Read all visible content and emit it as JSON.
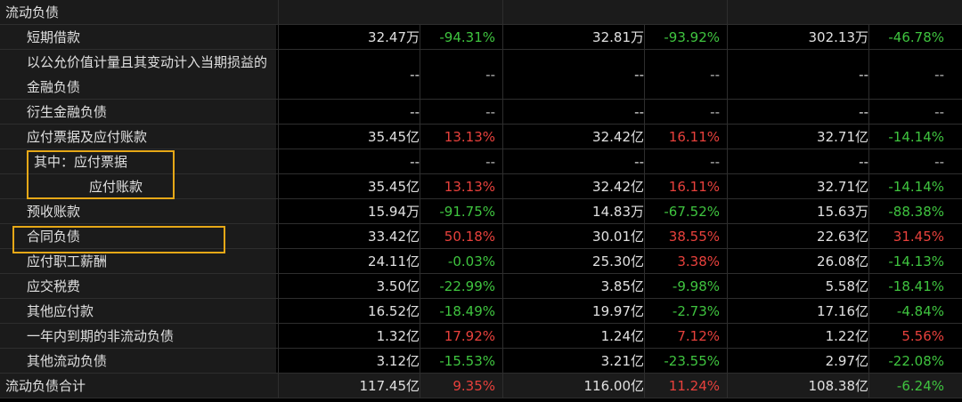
{
  "header": {
    "title": "流动负债"
  },
  "rows": [
    {
      "label": "短期借款",
      "cells": [
        {
          "value": "32.47万",
          "change": "-94.31%"
        },
        {
          "value": "32.81万",
          "change": "-93.92%"
        },
        {
          "value": "302.13万",
          "change": "-46.78%"
        }
      ]
    },
    {
      "label": "以公允价值计量且其变动计入当期损益的金融负债",
      "cells": [
        {
          "value": "--",
          "change": "--"
        },
        {
          "value": "--",
          "change": "--"
        },
        {
          "value": "--",
          "change": "--"
        }
      ]
    },
    {
      "label": "衍生金融负债",
      "cells": [
        {
          "value": "--",
          "change": "--"
        },
        {
          "value": "--",
          "change": "--"
        },
        {
          "value": "--",
          "change": "--"
        }
      ]
    },
    {
      "label": "应付票据及应付账款",
      "cells": [
        {
          "value": "35.45亿",
          "change": "13.13%"
        },
        {
          "value": "32.42亿",
          "change": "16.11%"
        },
        {
          "value": "32.71亿",
          "change": "-14.14%"
        }
      ]
    },
    {
      "label": "其中：应付票据",
      "cells": [
        {
          "value": "--",
          "change": "--"
        },
        {
          "value": "--",
          "change": "--"
        },
        {
          "value": "--",
          "change": "--"
        }
      ]
    },
    {
      "label": "应付账款",
      "cells": [
        {
          "value": "35.45亿",
          "change": "13.13%"
        },
        {
          "value": "32.42亿",
          "change": "16.11%"
        },
        {
          "value": "32.71亿",
          "change": "-14.14%"
        }
      ]
    },
    {
      "label": "预收账款",
      "cells": [
        {
          "value": "15.94万",
          "change": "-91.75%"
        },
        {
          "value": "14.83万",
          "change": "-67.52%"
        },
        {
          "value": "15.63万",
          "change": "-88.38%"
        }
      ]
    },
    {
      "label": "合同负债",
      "cells": [
        {
          "value": "33.42亿",
          "change": "50.18%"
        },
        {
          "value": "30.01亿",
          "change": "38.55%"
        },
        {
          "value": "22.63亿",
          "change": "31.45%"
        }
      ]
    },
    {
      "label": "应付职工薪酬",
      "cells": [
        {
          "value": "24.11亿",
          "change": "-0.03%"
        },
        {
          "value": "25.30亿",
          "change": "3.38%"
        },
        {
          "value": "26.08亿",
          "change": "-14.13%"
        }
      ]
    },
    {
      "label": "应交税费",
      "cells": [
        {
          "value": "3.50亿",
          "change": "-22.99%"
        },
        {
          "value": "3.85亿",
          "change": "-9.98%"
        },
        {
          "value": "5.58亿",
          "change": "-18.41%"
        }
      ]
    },
    {
      "label": "其他应付款",
      "cells": [
        {
          "value": "16.52亿",
          "change": "-18.49%"
        },
        {
          "value": "19.97亿",
          "change": "-2.73%"
        },
        {
          "value": "17.16亿",
          "change": "-4.84%"
        }
      ]
    },
    {
      "label": "一年内到期的非流动负债",
      "cells": [
        {
          "value": "1.32亿",
          "change": "17.92%"
        },
        {
          "value": "1.24亿",
          "change": "7.12%"
        },
        {
          "value": "1.22亿",
          "change": "5.56%"
        }
      ]
    },
    {
      "label": "其他流动负债",
      "cells": [
        {
          "value": "3.12亿",
          "change": "-15.53%"
        },
        {
          "value": "3.21亿",
          "change": "-23.55%"
        },
        {
          "value": "2.97亿",
          "change": "-22.08%"
        }
      ]
    }
  ],
  "total": {
    "label": "流动负债合计",
    "cells": [
      {
        "value": "117.45亿",
        "change": "9.35%"
      },
      {
        "value": "116.00亿",
        "change": "11.24%"
      },
      {
        "value": "108.38亿",
        "change": "-6.24%"
      }
    ]
  }
}
